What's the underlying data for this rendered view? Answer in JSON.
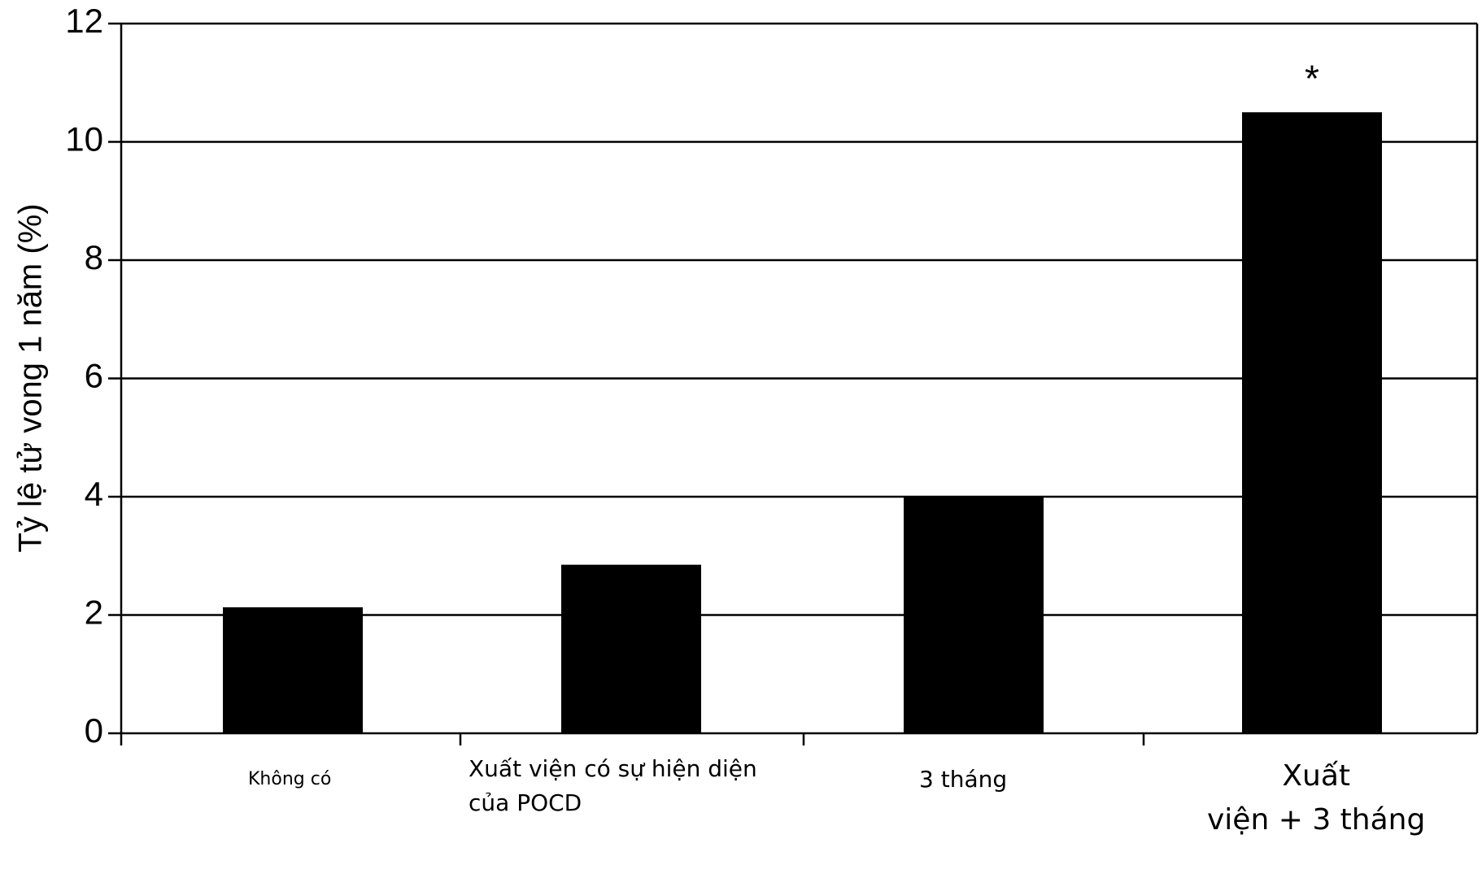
{
  "chart_data": {
    "type": "bar",
    "y_label": "Tỷ lệ tử vong 1 năm (%)",
    "categories": [
      "Không có",
      "Xuất viện có sự hiện diện\ncủa POCD",
      "3 tháng",
      "Xuất\nviện + 3 tháng"
    ],
    "values": [
      2.13,
      2.85,
      4.0,
      10.5
    ],
    "color": "#000000",
    "annotation": "*",
    "ylim": [
      0,
      12
    ],
    "yticks": [
      0,
      2,
      4,
      6,
      8,
      10,
      12
    ],
    "grid": true
  }
}
